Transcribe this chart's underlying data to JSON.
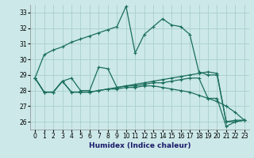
{
  "xlabel": "Humidex (Indice chaleur)",
  "bg_color": "#cce8e8",
  "grid_color": "#aacece",
  "line_color": "#1a6e5e",
  "xlim": [
    -0.5,
    23.5
  ],
  "ylim": [
    25.5,
    33.5
  ],
  "yticks": [
    26,
    27,
    28,
    29,
    30,
    31,
    32,
    33
  ],
  "xticks": [
    0,
    1,
    2,
    3,
    4,
    5,
    6,
    7,
    8,
    9,
    10,
    11,
    12,
    13,
    14,
    15,
    16,
    17,
    18,
    19,
    20,
    21,
    22,
    23
  ],
  "series": [
    [
      28.8,
      30.3,
      30.6,
      30.8,
      31.1,
      31.3,
      31.5,
      31.7,
      31.9,
      32.1,
      33.4,
      30.4,
      31.6,
      32.1,
      32.6,
      32.2,
      32.1,
      31.6,
      29.2,
      29.0,
      29.0,
      26.0,
      26.1,
      26.1
    ],
    [
      28.8,
      27.9,
      27.9,
      28.6,
      28.8,
      28.0,
      28.0,
      29.5,
      29.4,
      28.2,
      28.3,
      28.3,
      28.4,
      28.5,
      28.5,
      28.6,
      28.7,
      28.8,
      28.8,
      27.5,
      27.5,
      25.7,
      26.0,
      26.1
    ],
    [
      28.8,
      27.9,
      27.9,
      28.6,
      27.9,
      27.9,
      27.9,
      28.0,
      28.1,
      28.1,
      28.2,
      28.2,
      28.3,
      28.3,
      28.2,
      28.1,
      28.0,
      27.9,
      27.7,
      27.5,
      27.3,
      27.0,
      26.6,
      26.1
    ],
    [
      28.8,
      27.9,
      27.9,
      28.6,
      27.9,
      27.9,
      27.9,
      28.0,
      28.1,
      28.2,
      28.3,
      28.4,
      28.5,
      28.6,
      28.7,
      28.8,
      28.9,
      29.0,
      29.1,
      29.2,
      29.1,
      26.0,
      26.0,
      26.1
    ]
  ]
}
